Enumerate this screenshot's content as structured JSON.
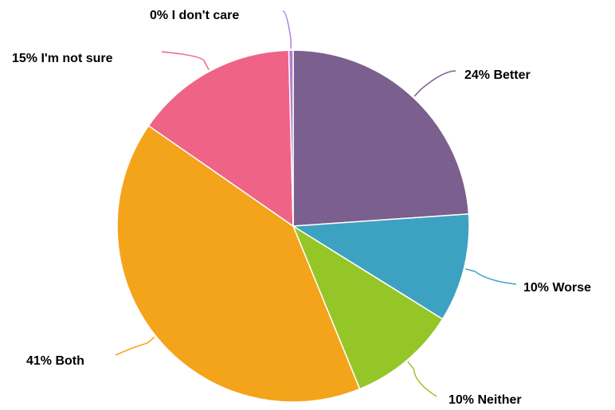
{
  "chart_data": {
    "type": "pie",
    "slices": [
      {
        "name": "Better",
        "value": 24,
        "label": "24% Better",
        "color": "#7B5F8E"
      },
      {
        "name": "Worse",
        "value": 10,
        "label": "10% Worse",
        "color": "#3DA2C1"
      },
      {
        "name": "Neither",
        "value": 10,
        "label": "10% Neither",
        "color": "#95C628"
      },
      {
        "name": "Both",
        "value": 41,
        "label": "41% Both",
        "color": "#F4A41A"
      },
      {
        "name": "I'm not sure",
        "value": 15,
        "label": "15% I'm not sure",
        "color": "#EF6386"
      },
      {
        "name": "I don't care",
        "value": 0.4,
        "label": "0% I don't care",
        "color": "#B07ED1"
      }
    ],
    "start_angle": "top",
    "direction": "clockwise",
    "labels": "outside-with-leader-lines"
  }
}
